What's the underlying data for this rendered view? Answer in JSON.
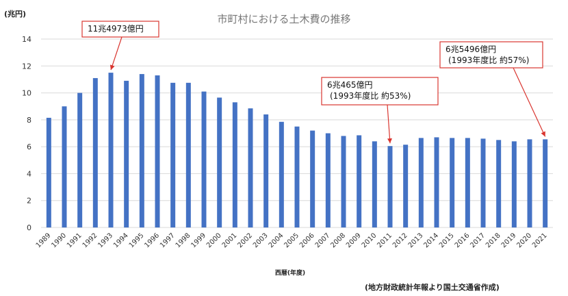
{
  "chart_data": {
    "type": "bar",
    "title": "市町村における土木費の推移",
    "ylabel": "(兆円)",
    "xlabel": "西暦(年度)",
    "source": "(地方財政統計年報より国土交通省作成)",
    "ylim": [
      0,
      14
    ],
    "yticks": [
      0,
      2,
      4,
      6,
      8,
      10,
      12,
      14
    ],
    "grid": true,
    "categories": [
      "1989",
      "1990",
      "1991",
      "1992",
      "1993",
      "1994",
      "1995",
      "1996",
      "1997",
      "1998",
      "1999",
      "2000",
      "2001",
      "2002",
      "2003",
      "2004",
      "2005",
      "2006",
      "2007",
      "2008",
      "2009",
      "2010",
      "2011",
      "2012",
      "2013",
      "2014",
      "2015",
      "2016",
      "2017",
      "2018",
      "2019",
      "2020",
      "2021"
    ],
    "values": [
      8.15,
      9.0,
      10.0,
      11.1,
      11.5,
      10.9,
      11.4,
      11.3,
      10.75,
      10.75,
      10.1,
      9.65,
      9.3,
      8.85,
      8.4,
      7.85,
      7.5,
      7.2,
      7.0,
      6.8,
      6.85,
      6.4,
      6.05,
      6.15,
      6.65,
      6.7,
      6.65,
      6.65,
      6.6,
      6.5,
      6.4,
      6.55,
      6.55
    ],
    "annotations": [
      {
        "lines": [
          "11兆4973億円"
        ],
        "target": "1993"
      },
      {
        "lines": [
          "6兆465億円",
          "(1993年度比 約53%)"
        ],
        "target": "2011"
      },
      {
        "lines": [
          "6兆5496億円",
          "(1993年度比  約57%)"
        ],
        "target": "2021"
      }
    ]
  }
}
